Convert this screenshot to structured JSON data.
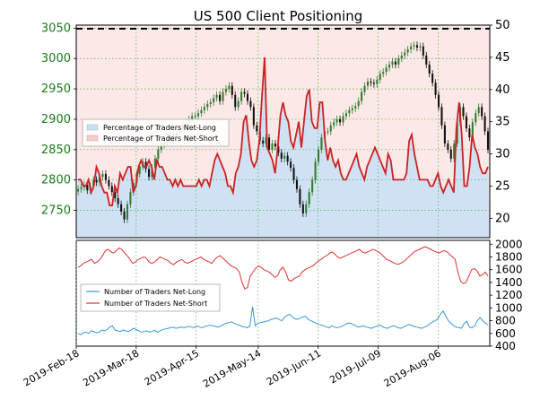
{
  "chart_data": [
    {
      "type": "candlestick+line",
      "title": "US 500 Client Positioning",
      "left_axis": {
        "ylim": [
          2705,
          3055
        ],
        "ticks": [
          2750,
          2800,
          2850,
          2900,
          2950,
          3000,
          3050
        ]
      },
      "right_axis": {
        "ylim": [
          17,
          50
        ],
        "ticks": [
          20,
          25,
          30,
          35,
          40,
          45,
          50
        ]
      },
      "x_tick_labels": [
        "2019-Feb-18",
        "2019-Mar-18",
        "2019-Apr-15",
        "2019-May-14",
        "2019-Jun-11",
        "2019-Jul-09",
        "2019-Aug-06"
      ],
      "legend": {
        "placement": "left",
        "entries": [
          "Percentage of Traders Net-Long",
          "Percentage of Traders Net-Short"
        ]
      },
      "price_close": [
        2785,
        2788,
        2792,
        2783,
        2790,
        2800,
        2796,
        2805,
        2810,
        2800,
        2790,
        2780,
        2770,
        2760,
        2748,
        2735,
        2760,
        2780,
        2795,
        2810,
        2822,
        2830,
        2818,
        2805,
        2820,
        2835,
        2850,
        2858,
        2862,
        2870,
        2865,
        2873,
        2878,
        2885,
        2890,
        2895,
        2900,
        2905,
        2905,
        2910,
        2915,
        2920,
        2925,
        2928,
        2935,
        2940,
        2930,
        2945,
        2950,
        2955,
        2940,
        2920,
        2930,
        2945,
        2942,
        2930,
        2920,
        2890,
        2880,
        2865,
        2860,
        2870,
        2850,
        2860,
        2855,
        2845,
        2835,
        2840,
        2830,
        2820,
        2800,
        2785,
        2760,
        2745,
        2760,
        2780,
        2800,
        2830,
        2850,
        2870,
        2880,
        2880,
        2890,
        2895,
        2900,
        2895,
        2905,
        2910,
        2915,
        2918,
        2922,
        2930,
        2945,
        2955,
        2962,
        2960,
        2958,
        2965,
        2975,
        2978,
        2985,
        2990,
        2995,
        2990,
        3000,
        3005,
        3010,
        3015,
        3020,
        3022,
        3018,
        3020,
        3005,
        2990,
        2975,
        2960,
        2940,
        2920,
        2890,
        2860,
        2850,
        2835,
        2860,
        2895,
        2920,
        2905,
        2885,
        2870,
        2895,
        2910,
        2920,
        2905,
        2880,
        2850
      ],
      "pct_net_long": [
        26,
        26,
        25,
        25,
        26,
        24,
        25,
        28,
        27,
        25,
        24,
        24,
        22,
        22,
        25,
        24,
        27,
        26,
        27,
        28,
        28,
        24,
        25,
        28,
        29,
        28,
        28,
        29,
        28,
        26,
        29,
        28,
        28,
        27,
        26,
        26,
        25,
        26,
        25,
        26,
        25,
        25,
        25,
        25,
        25,
        25,
        26,
        25,
        26,
        26,
        25,
        27,
        29,
        30,
        29,
        28,
        27,
        25,
        25,
        24,
        27,
        28,
        30,
        35,
        36,
        32,
        29,
        28,
        29,
        32,
        39,
        45,
        31,
        30,
        29,
        27,
        31,
        36,
        38,
        36,
        35,
        32,
        31,
        33,
        35,
        31,
        35,
        39,
        40,
        35,
        34,
        34,
        38,
        38,
        32,
        29,
        31,
        29,
        28,
        29,
        27,
        26,
        26,
        27,
        28,
        29,
        30,
        28,
        27,
        26,
        28,
        29,
        30,
        31,
        30,
        29,
        28,
        27,
        30,
        29,
        26,
        26,
        26,
        26,
        26,
        27,
        32,
        33,
        30,
        28,
        26,
        26,
        26,
        26,
        25,
        25,
        26,
        27,
        25,
        24,
        25,
        26,
        25,
        24,
        34,
        38,
        33,
        25,
        25,
        28,
        33,
        31,
        30,
        28,
        27,
        27,
        28
      ],
      "trader_long": [
        600,
        580,
        610,
        620,
        600,
        640,
        630,
        610,
        620,
        650,
        640,
        660,
        700,
        720,
        650,
        640,
        630,
        650,
        640,
        630,
        650,
        680,
        660,
        640,
        620,
        630,
        640,
        620,
        630,
        650,
        620,
        640,
        660,
        670,
        680,
        690,
        700,
        680,
        690,
        700,
        690,
        700,
        710,
        700,
        690,
        720,
        700,
        690,
        710,
        720,
        730,
        720,
        710,
        700,
        720,
        740,
        760,
        770,
        780,
        760,
        740,
        730,
        710,
        700,
        690,
        720,
        1020,
        720,
        760,
        770,
        780,
        790,
        800,
        820,
        830,
        840,
        820,
        800,
        850,
        880,
        900,
        860,
        830,
        820,
        840,
        860,
        870,
        820,
        800,
        780,
        760,
        740,
        730,
        720,
        700,
        690,
        720,
        700,
        690,
        700,
        720,
        740,
        760,
        760,
        740,
        720,
        700,
        710,
        720,
        700,
        690,
        680,
        700,
        720,
        730,
        710,
        690,
        680,
        700,
        720,
        710,
        690,
        680,
        700,
        720,
        740,
        730,
        710,
        700,
        690,
        680,
        700,
        720,
        750,
        780,
        800,
        830,
        900,
        950,
        880,
        800,
        760,
        720,
        700,
        690,
        680,
        760,
        790,
        700,
        690,
        720,
        800,
        850,
        800,
        760,
        740
      ],
      "trader_short": [
        1640,
        1660,
        1700,
        1720,
        1740,
        1760,
        1700,
        1720,
        1760,
        1820,
        1900,
        1920,
        1880,
        1860,
        1900,
        1940,
        1920,
        1860,
        1820,
        1760,
        1700,
        1720,
        1760,
        1780,
        1800,
        1780,
        1720,
        1700,
        1720,
        1760,
        1800,
        1780,
        1760,
        1740,
        1700,
        1680,
        1720,
        1740,
        1760,
        1720,
        1700,
        1720,
        1740,
        1760,
        1780,
        1800,
        1760,
        1740,
        1720,
        1700,
        1760,
        1800,
        1820,
        1780,
        1740,
        1700,
        1660,
        1640,
        1620,
        1560,
        1400,
        1300,
        1320,
        1500,
        1560,
        1620,
        1660,
        1640,
        1600,
        1580,
        1560,
        1520,
        1480,
        1500,
        1600,
        1640,
        1560,
        1440,
        1420,
        1460,
        1480,
        1500,
        1560,
        1600,
        1620,
        1640,
        1660,
        1700,
        1740,
        1760,
        1800,
        1820,
        1860,
        1880,
        1840,
        1800,
        1780,
        1800,
        1820,
        1840,
        1860,
        1880,
        1900,
        1920,
        1880,
        1860,
        1880,
        1900,
        1920,
        1900,
        1880,
        1840,
        1800,
        1760,
        1740,
        1720,
        1700,
        1680,
        1700,
        1720,
        1760,
        1800,
        1840,
        1880,
        1900,
        1920,
        1940,
        1960,
        1940,
        1920,
        1900,
        1880,
        1860,
        1880,
        1900,
        1880,
        1840,
        1800,
        1760,
        1560,
        1420,
        1380,
        1400,
        1500,
        1600,
        1620,
        1580,
        1500,
        1520,
        1560,
        1500
      ],
      "bottom_left_axis": {
        "ylim": [
          400,
          1050
        ],
        "ticks": []
      },
      "bottom_right_axis": {
        "ticks": [
          {
            "value": 400,
            "label": "400"
          },
          {
            "value": 600,
            "label": "600"
          },
          {
            "value": 800,
            "label": "800"
          },
          {
            "value": 1000,
            "label": "1000"
          },
          {
            "value": 1200,
            "label": "1200"
          },
          {
            "value": 1400,
            "label": "1400"
          },
          {
            "value": 1600,
            "label": "1600"
          },
          {
            "value": 1800,
            "label": "1800"
          },
          {
            "value": 2000,
            "label": "2000"
          }
        ]
      },
      "bottom_legend": {
        "placement": "left",
        "entries": [
          "Number of Traders Net-Long",
          "Number of Traders Net-Short"
        ]
      },
      "colors": {
        "net_long": "#cce0f5",
        "net_short": "#f5cccc",
        "net_short_line": "#cc2222",
        "trader_long_line": "#3399dd",
        "trader_short_line": "#dd3333",
        "candle_up": "#2e7d2e",
        "candle_down": "#111111",
        "grid": "#3cb043",
        "left_tick_color": "#1a7a1a"
      }
    }
  ]
}
